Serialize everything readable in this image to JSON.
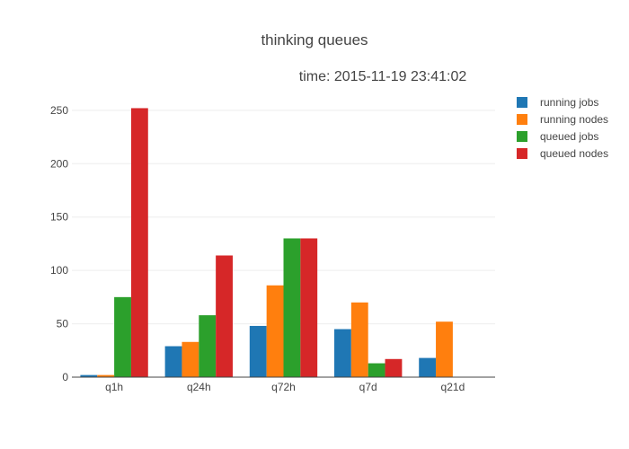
{
  "chart_data": {
    "type": "bar",
    "title": "thinking queues",
    "annotation": "time: 2015-11-19 23:41:02",
    "xlabel": "",
    "ylabel": "",
    "categories": [
      "q1h",
      "q24h",
      "q72h",
      "q7d",
      "q21d"
    ],
    "series": [
      {
        "name": "running jobs",
        "color": "#1f77b4",
        "values": [
          2,
          29,
          48,
          45,
          18
        ]
      },
      {
        "name": "running nodes",
        "color": "#ff7f0e",
        "values": [
          2,
          33,
          86,
          70,
          52
        ]
      },
      {
        "name": "queued jobs",
        "color": "#2ca02c",
        "values": [
          75,
          58,
          130,
          13,
          0
        ]
      },
      {
        "name": "queued nodes",
        "color": "#d62728",
        "values": [
          252,
          114,
          130,
          17,
          0
        ]
      }
    ],
    "yticks": [
      0,
      50,
      100,
      150,
      200,
      250
    ],
    "ylim": [
      0,
      265
    ],
    "grid": true,
    "legend_position": "top-right"
  }
}
